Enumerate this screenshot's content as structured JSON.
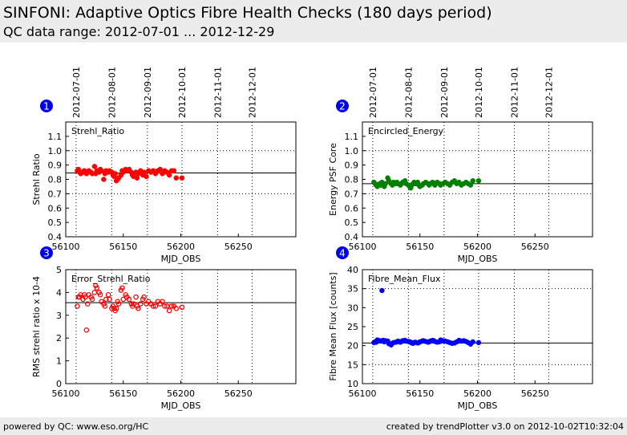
{
  "header": {
    "title": "SINFONI: Adaptive Optics Fibre Health Checks (180 days period)",
    "subtitle": "QC data range: 2012-07-01 ... 2012-12-29"
  },
  "footer": {
    "left": "powered by QC: www.eso.org/HC",
    "right": "created by trendPlotter v3.0 on 2012-10-02T10:32:04"
  },
  "date_ticks": [
    {
      "label": "2012-07-01",
      "mjd": 56109
    },
    {
      "label": "2012-08-01",
      "mjd": 56140
    },
    {
      "label": "2012-09-01",
      "mjd": 56171
    },
    {
      "label": "2012-10-01",
      "mjd": 56201
    },
    {
      "label": "2012-11-01",
      "mjd": 56232
    },
    {
      "label": "2012-12-01",
      "mjd": 56262
    }
  ],
  "chart_data": [
    {
      "id": "1",
      "type": "scatter",
      "label": "Strehl_Ratio",
      "xlabel": "MJD_OBS",
      "ylabel": "Strehl Ratio",
      "xlim": [
        56100,
        56300
      ],
      "ylim": [
        0.4,
        1.2
      ],
      "xticks": [
        56100,
        56150,
        56200,
        56250
      ],
      "yticks": [
        0.4,
        0.5,
        0.6,
        0.7,
        0.8,
        0.9,
        1.0,
        1.1
      ],
      "hgrid": [
        0.7,
        1.0
      ],
      "mean": 0.845,
      "color": "#ff0000",
      "marker": "filled-circle",
      "x": [
        56110,
        56111,
        56112,
        56113,
        56115,
        56116,
        56117,
        56118,
        56119,
        56120,
        56122,
        56123,
        56125,
        56126,
        56127,
        56129,
        56130,
        56131,
        56133,
        56134,
        56135,
        56137,
        56138,
        56140,
        56141,
        56142,
        56143,
        56144,
        56145,
        56146,
        56148,
        56149,
        56150,
        56152,
        56153,
        56155,
        56157,
        56158,
        56159,
        56161,
        56162,
        56163,
        56165,
        56167,
        56168,
        56170,
        56172,
        56174,
        56176,
        56178,
        56180,
        56182,
        56184,
        56186,
        56188,
        56190,
        56192,
        56194,
        56196,
        56201
      ],
      "y": [
        0.86,
        0.87,
        0.85,
        0.84,
        0.85,
        0.86,
        0.85,
        0.84,
        0.85,
        0.86,
        0.85,
        0.84,
        0.89,
        0.84,
        0.86,
        0.85,
        0.87,
        0.86,
        0.8,
        0.84,
        0.86,
        0.85,
        0.86,
        0.85,
        0.83,
        0.82,
        0.84,
        0.79,
        0.8,
        0.81,
        0.83,
        0.86,
        0.85,
        0.87,
        0.86,
        0.87,
        0.85,
        0.83,
        0.82,
        0.85,
        0.81,
        0.84,
        0.86,
        0.83,
        0.85,
        0.82,
        0.86,
        0.85,
        0.86,
        0.84,
        0.86,
        0.87,
        0.84,
        0.86,
        0.85,
        0.83,
        0.86,
        0.86,
        0.81,
        0.81
      ]
    },
    {
      "id": "2",
      "type": "scatter",
      "label": "Encircled_Energy",
      "xlabel": "MJD_OBS",
      "ylabel": "Energy PSF Core",
      "xlim": [
        56100,
        56300
      ],
      "ylim": [
        0.4,
        1.2
      ],
      "xticks": [
        56100,
        56150,
        56200,
        56250
      ],
      "yticks": [
        0.4,
        0.5,
        0.6,
        0.7,
        0.8,
        0.9,
        1.0,
        1.1
      ],
      "hgrid": [
        0.7,
        1.0
      ],
      "mean": 0.77,
      "color": "#008000",
      "marker": "filled-circle",
      "x": [
        56110,
        56111,
        56112,
        56113,
        56115,
        56116,
        56117,
        56118,
        56119,
        56120,
        56122,
        56123,
        56125,
        56126,
        56127,
        56129,
        56130,
        56131,
        56133,
        56134,
        56135,
        56137,
        56138,
        56140,
        56141,
        56142,
        56143,
        56144,
        56145,
        56146,
        56148,
        56149,
        56150,
        56152,
        56153,
        56155,
        56157,
        56158,
        56159,
        56161,
        56162,
        56163,
        56165,
        56167,
        56168,
        56170,
        56172,
        56174,
        56176,
        56178,
        56180,
        56182,
        56184,
        56186,
        56188,
        56190,
        56192,
        56194,
        56196,
        56201
      ],
      "y": [
        0.78,
        0.77,
        0.76,
        0.75,
        0.77,
        0.76,
        0.78,
        0.76,
        0.75,
        0.77,
        0.81,
        0.79,
        0.77,
        0.76,
        0.78,
        0.77,
        0.78,
        0.77,
        0.76,
        0.77,
        0.78,
        0.79,
        0.77,
        0.76,
        0.75,
        0.74,
        0.76,
        0.77,
        0.78,
        0.77,
        0.78,
        0.76,
        0.75,
        0.76,
        0.77,
        0.78,
        0.77,
        0.76,
        0.77,
        0.78,
        0.77,
        0.76,
        0.78,
        0.77,
        0.76,
        0.77,
        0.78,
        0.77,
        0.76,
        0.78,
        0.79,
        0.77,
        0.78,
        0.76,
        0.77,
        0.78,
        0.77,
        0.76,
        0.79,
        0.79
      ]
    },
    {
      "id": "3",
      "type": "scatter",
      "label": "Error_Strehl_Ratio",
      "xlabel": "MJD_OBS",
      "ylabel": "RMS strehl ratio x 10-4",
      "xlim": [
        56100,
        56300
      ],
      "ylim": [
        0,
        5
      ],
      "xticks": [
        56100,
        56150,
        56200,
        56250
      ],
      "yticks": [
        0,
        1,
        2,
        3,
        4,
        5
      ],
      "hgrid": [],
      "mean": 3.55,
      "color": "#ff0000",
      "marker": "open-circle",
      "x": [
        56110,
        56111,
        56112,
        56113,
        56115,
        56116,
        56117,
        56118,
        56119,
        56120,
        56122,
        56123,
        56125,
        56126,
        56127,
        56129,
        56130,
        56131,
        56133,
        56134,
        56135,
        56137,
        56138,
        56140,
        56141,
        56142,
        56143,
        56144,
        56145,
        56146,
        56148,
        56149,
        56150,
        56152,
        56153,
        56155,
        56157,
        56158,
        56159,
        56161,
        56162,
        56163,
        56165,
        56167,
        56168,
        56170,
        56172,
        56174,
        56176,
        56178,
        56180,
        56182,
        56184,
        56186,
        56188,
        56190,
        56192,
        56194,
        56196,
        56201
      ],
      "y": [
        3.4,
        3.8,
        3.8,
        3.9,
        3.7,
        3.9,
        3.8,
        2.35,
        3.5,
        3.9,
        3.8,
        3.7,
        4.0,
        4.3,
        4.2,
        4.0,
        3.9,
        3.6,
        3.5,
        3.4,
        3.7,
        3.9,
        3.7,
        3.3,
        3.4,
        3.3,
        3.2,
        3.3,
        3.6,
        3.5,
        4.1,
        4.2,
        3.7,
        3.9,
        3.8,
        3.7,
        3.5,
        3.4,
        3.5,
        3.8,
        3.4,
        3.3,
        3.5,
        3.7,
        3.8,
        3.5,
        3.6,
        3.5,
        3.4,
        3.4,
        3.6,
        3.5,
        3.6,
        3.4,
        3.4,
        3.2,
        3.4,
        3.4,
        3.3,
        3.35
      ]
    },
    {
      "id": "4",
      "type": "scatter",
      "label": "Fibre_Mean_Flux",
      "xlabel": "MJD_OBS",
      "ylabel": "Fibre Mean Flux [counts]",
      "xlim": [
        56100,
        56300
      ],
      "ylim": [
        10,
        40
      ],
      "xticks": [
        56100,
        56150,
        56200,
        56250
      ],
      "yticks": [
        10,
        15,
        20,
        25,
        30,
        35,
        40
      ],
      "hgrid": [
        15,
        35
      ],
      "mean": 20.7,
      "color": "#0000ff",
      "marker": "filled-circle",
      "x": [
        56110,
        56111,
        56112,
        56113,
        56115,
        56116,
        56117,
        56118,
        56119,
        56120,
        56122,
        56123,
        56125,
        56126,
        56127,
        56129,
        56130,
        56131,
        56133,
        56134,
        56135,
        56137,
        56138,
        56140,
        56141,
        56142,
        56143,
        56144,
        56145,
        56146,
        56148,
        56149,
        56150,
        56152,
        56153,
        56155,
        56157,
        56158,
        56159,
        56161,
        56162,
        56163,
        56165,
        56167,
        56168,
        56170,
        56172,
        56174,
        56176,
        56178,
        56180,
        56182,
        56184,
        56186,
        56188,
        56190,
        56192,
        56194,
        56196,
        56201
      ],
      "y": [
        20.8,
        21.0,
        20.9,
        21.5,
        21.3,
        21.2,
        34.5,
        21.4,
        21.0,
        21.3,
        21.2,
        20.5,
        20.2,
        20.6,
        20.8,
        20.9,
        21.0,
        21.2,
        20.9,
        21.1,
        21.3,
        21.4,
        21.2,
        21.1,
        21.0,
        20.9,
        20.7,
        20.6,
        20.8,
        20.9,
        20.7,
        20.8,
        21.0,
        21.2,
        21.3,
        21.1,
        20.9,
        21.0,
        21.2,
        21.4,
        21.3,
        21.1,
        20.9,
        21.0,
        21.5,
        21.3,
        21.2,
        21.0,
        20.8,
        20.6,
        20.7,
        21.0,
        21.4,
        21.2,
        21.3,
        21.1,
        20.8,
        20.4,
        21.0,
        20.8
      ]
    }
  ]
}
